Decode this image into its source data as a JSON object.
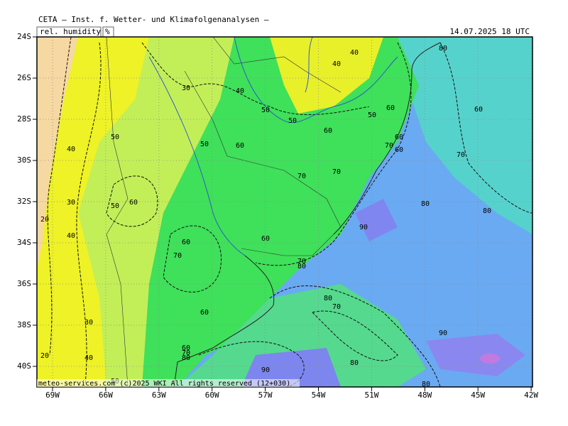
{
  "header": {
    "title": "CETA — Inst. f. Wetter- und Klimafolgenanalysen —",
    "variable": "rel. humidity",
    "unit": "%",
    "valid_time": "14.07.2025 18 UTC"
  },
  "footer": "meteo-services.com (c)2025 WKI All rights reserved (12+030)",
  "lat_labels": [
    "24S",
    "26S",
    "28S",
    "30S",
    "32S",
    "34S",
    "36S",
    "38S",
    "40S"
  ],
  "lon_labels": [
    "69W",
    "66W",
    "63W",
    "60W",
    "57W",
    "54W",
    "51W",
    "48W",
    "45W",
    "42W"
  ],
  "contour_labels": [
    40,
    40,
    80,
    30,
    40,
    50,
    50,
    60,
    50,
    60,
    60,
    50,
    50,
    60,
    60,
    70,
    60,
    40,
    70,
    70,
    70,
    30,
    50,
    60,
    80,
    80,
    20,
    40,
    90,
    60,
    60,
    70,
    70,
    80,
    80,
    70,
    60,
    30,
    90,
    20,
    40,
    60,
    70,
    80,
    80,
    90,
    80,
    50
  ]
}
